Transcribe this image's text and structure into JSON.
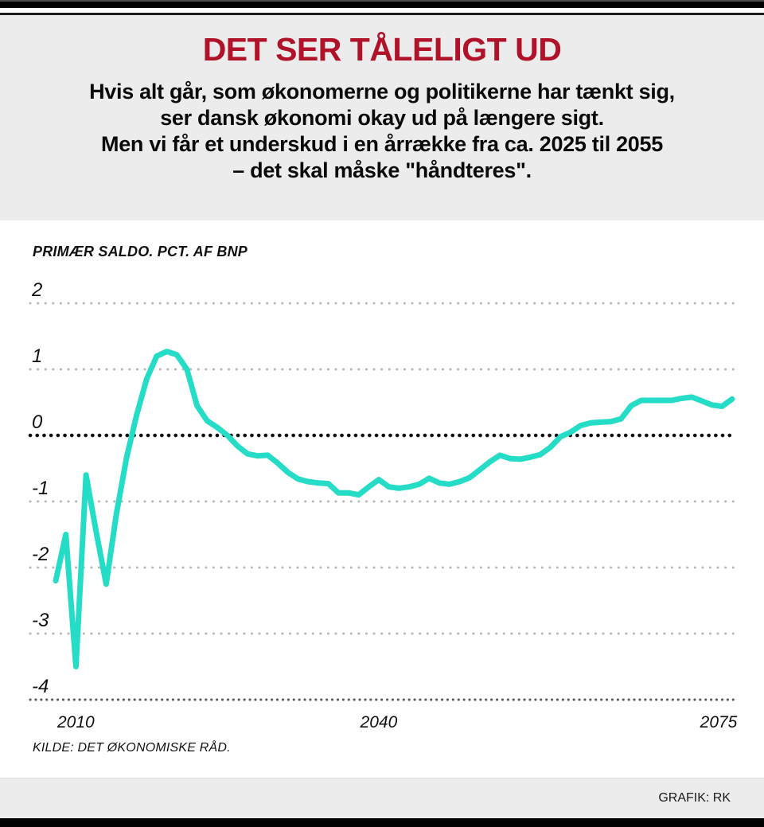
{
  "header": {
    "title": "DET SER TÅLELIGT UD",
    "intro_lines": [
      "Hvis alt går, som økonomerne og politikerne har tænkt sig,",
      "ser dansk økonomi okay ud på længere sigt.",
      "Men vi får et underskud i en årrække fra ca. 2025 til 2055",
      "– det skal måske \"håndteres\"."
    ]
  },
  "chart": {
    "label": "PRIMÆR SALDO. PCT. AF BNP",
    "source": "KILDE: DET ØKONOMISKE RÅD."
  },
  "footer": {
    "credit": "GRAFIK: RK"
  },
  "colors": {
    "title_red": "#b01229",
    "line_teal": "#25dcc6",
    "grid_gray": "#b8b8b8",
    "zero_line_black": "#121212",
    "axis_dark_gray": "#5a5a5a",
    "header_bg": "#ececec",
    "panel_bg": "#ffffff",
    "footer_bg": "#ececec",
    "bar_black": "#000000"
  },
  "chart_data": {
    "type": "line",
    "title": "PRIMÆR SALDO. PCT. AF BNP",
    "series_name": "Primær saldo, pct. af BNP",
    "xlabel": "",
    "ylabel": "Pct. af BNP",
    "xlim": [
      2008,
      2075
    ],
    "ylim": [
      -4,
      2
    ],
    "y_ticks": [
      2,
      1,
      0,
      -1,
      -2,
      -3,
      -4
    ],
    "x_ticks": [
      2010,
      2040,
      2075
    ],
    "grid": "horizontal-dotted, zero line emphasized black, bottom axis dark dotted",
    "legend": "none",
    "x": [
      2008,
      2009,
      2010,
      2011,
      2012,
      2013,
      2014,
      2015,
      2016,
      2017,
      2018,
      2019,
      2020,
      2021,
      2022,
      2023,
      2024,
      2025,
      2026,
      2027,
      2028,
      2029,
      2030,
      2031,
      2032,
      2033,
      2034,
      2035,
      2036,
      2037,
      2038,
      2039,
      2040,
      2041,
      2042,
      2043,
      2044,
      2045,
      2046,
      2047,
      2048,
      2049,
      2050,
      2051,
      2052,
      2053,
      2054,
      2055,
      2056,
      2057,
      2058,
      2059,
      2060,
      2061,
      2062,
      2063,
      2064,
      2065,
      2066,
      2067,
      2068,
      2069,
      2070,
      2071,
      2072,
      2073,
      2074,
      2075
    ],
    "values": [
      -2.2,
      -1.5,
      -3.5,
      -0.6,
      -1.45,
      -2.25,
      -1.2,
      -0.35,
      0.3,
      0.85,
      1.2,
      1.27,
      1.22,
      1.0,
      0.45,
      0.22,
      0.12,
      0.0,
      -0.16,
      -0.28,
      -0.31,
      -0.3,
      -0.42,
      -0.56,
      -0.66,
      -0.7,
      -0.72,
      -0.73,
      -0.87,
      -0.87,
      -0.9,
      -0.78,
      -0.67,
      -0.78,
      -0.8,
      -0.78,
      -0.74,
      -0.65,
      -0.72,
      -0.74,
      -0.7,
      -0.64,
      -0.52,
      -0.4,
      -0.3,
      -0.35,
      -0.36,
      -0.33,
      -0.29,
      -0.18,
      -0.02,
      0.05,
      0.15,
      0.19,
      0.2,
      0.21,
      0.25,
      0.45,
      0.53,
      0.53,
      0.53,
      0.53,
      0.56,
      0.58,
      0.52,
      0.46,
      0.44,
      0.55
    ]
  }
}
